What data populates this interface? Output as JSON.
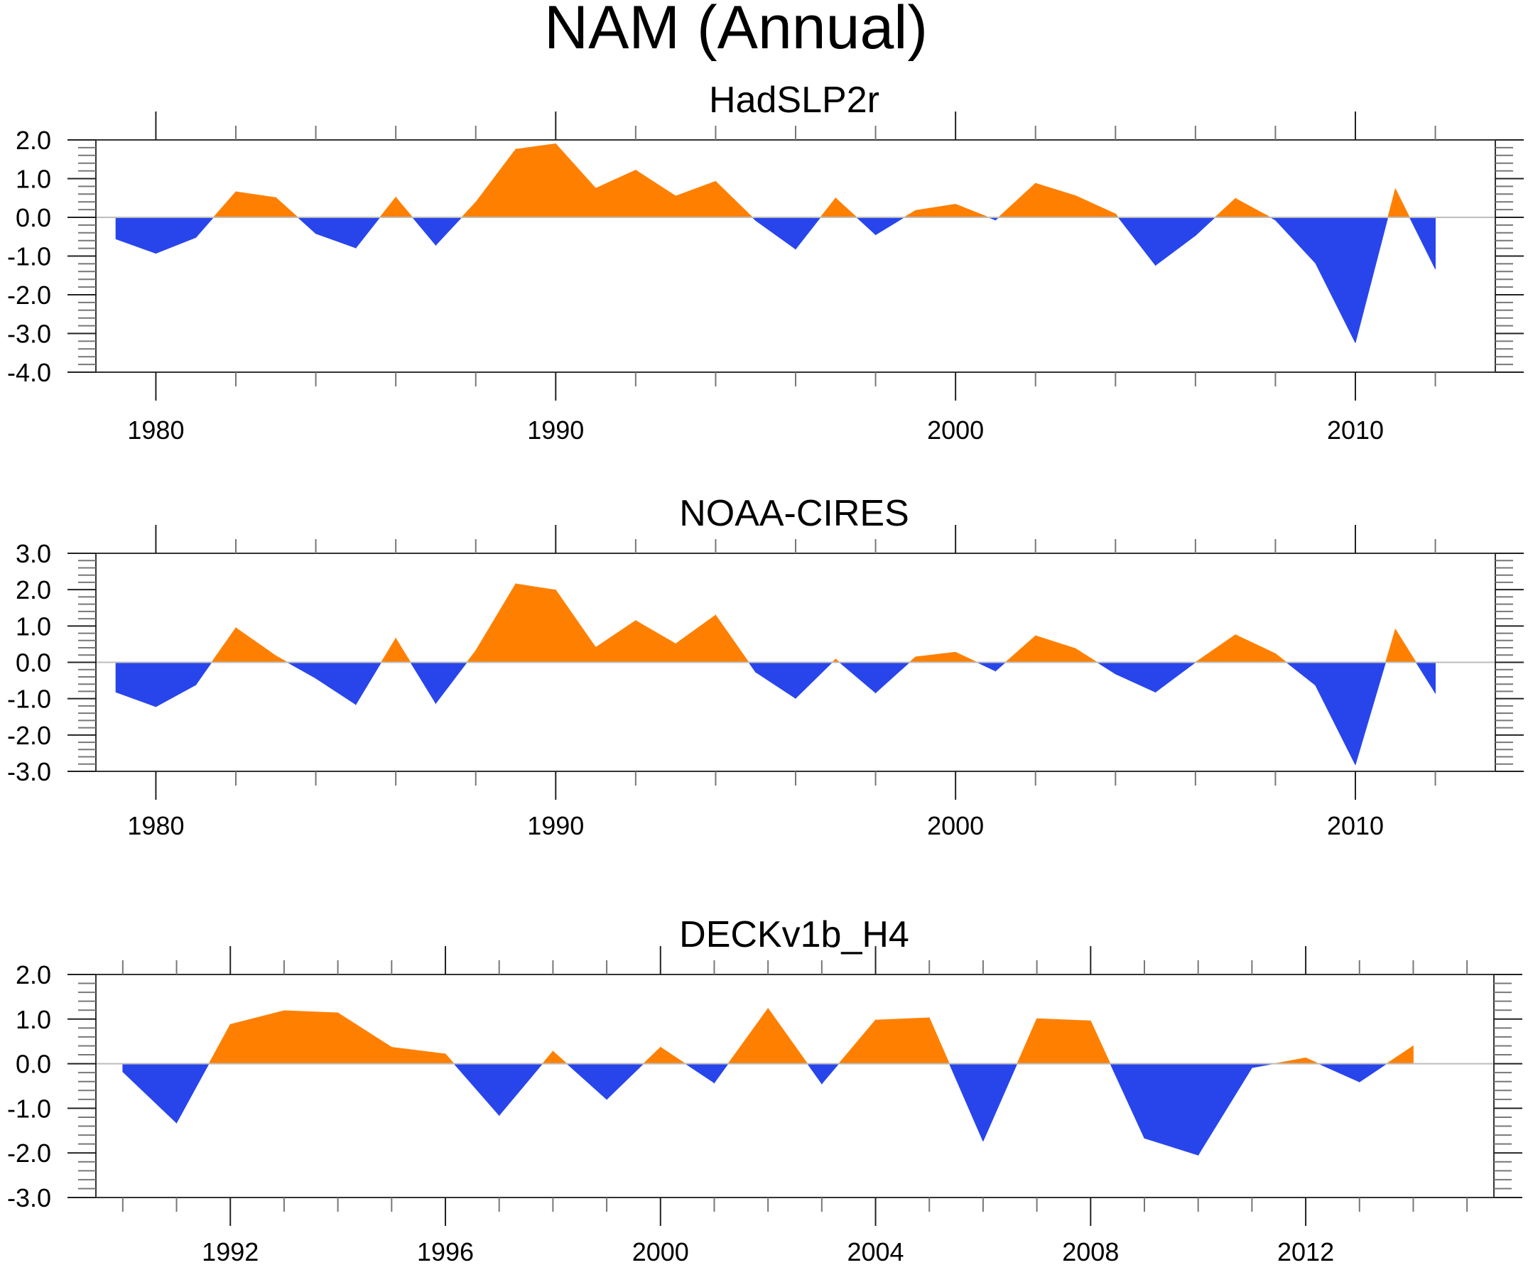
{
  "chart_data": {
    "title": "NAM (Annual)",
    "type": "area",
    "colors": {
      "positive": "#FF8000",
      "negative": "#2845EC",
      "zero_line": "#BDBDBD",
      "axis": "#000000"
    },
    "panels": [
      {
        "subtitle": "HadSLP2r",
        "type": "area",
        "xlim": [
          1978.5,
          2013.5
        ],
        "ylim": [
          -4.0,
          2.0
        ],
        "y_ticks": [
          "2.0",
          "1.0",
          "0.0",
          "-1.0",
          "-2.0",
          "-3.0",
          "-4.0"
        ],
        "y_tick_values": [
          2,
          1,
          0,
          -1,
          -2,
          -3,
          -4
        ],
        "x_tick_labels": [
          "1980",
          "1990",
          "2000",
          "2010"
        ],
        "x_tick_values": [
          1980,
          1990,
          2000,
          2010
        ],
        "x_minor_step": 2,
        "x": [
          1979,
          1980,
          1981,
          1982,
          1983,
          1984,
          1985,
          1986,
          1987,
          1988,
          1989,
          1990,
          1991,
          1992,
          1993,
          1994,
          1995,
          1996,
          1997,
          1998,
          1999,
          2000,
          2001,
          2002,
          2003,
          2004,
          2005,
          2006,
          2007,
          2008,
          2009,
          2010,
          2011,
          2012
        ],
        "values": [
          -0.56,
          -0.93,
          -0.52,
          0.66,
          0.51,
          -0.42,
          -0.79,
          0.52,
          -0.72,
          0.39,
          1.76,
          1.9,
          0.75,
          1.22,
          0.55,
          0.93,
          -0.08,
          -0.82,
          0.5,
          -0.45,
          0.18,
          0.34,
          -0.07,
          0.88,
          0.56,
          0.09,
          -1.24,
          -0.47,
          0.49,
          -0.07,
          -1.18,
          -3.24,
          0.74,
          -1.34
        ]
      },
      {
        "subtitle": "NOAA-CIRES",
        "type": "area",
        "xlim": [
          1978.5,
          2013.5
        ],
        "ylim": [
          -3.0,
          3.0
        ],
        "y_ticks": [
          "3.0",
          "2.0",
          "1.0",
          "0.0",
          "-1.0",
          "-2.0",
          "-3.0"
        ],
        "y_tick_values": [
          3,
          2,
          1,
          0,
          -1,
          -2,
          -3
        ],
        "x_tick_labels": [
          "1980",
          "1990",
          "2000",
          "2010"
        ],
        "x_tick_values": [
          1980,
          1990,
          2000,
          2010
        ],
        "x_minor_step": 2,
        "x": [
          1979,
          1980,
          1981,
          1982,
          1983,
          1984,
          1985,
          1986,
          1987,
          1988,
          1989,
          1990,
          1991,
          1992,
          1993,
          1994,
          1995,
          1996,
          1997,
          1998,
          1999,
          2000,
          2001,
          2002,
          2003,
          2004,
          2005,
          2006,
          2007,
          2008,
          2009,
          2010,
          2011,
          2012
        ],
        "values": [
          -0.82,
          -1.22,
          -0.62,
          0.95,
          0.18,
          -0.44,
          -1.16,
          0.66,
          -1.13,
          0.32,
          2.16,
          1.99,
          0.41,
          1.15,
          0.51,
          1.3,
          -0.27,
          -0.99,
          0.09,
          -0.84,
          0.15,
          0.28,
          -0.24,
          0.73,
          0.38,
          -0.32,
          -0.82,
          0.0,
          0.76,
          0.24,
          -0.63,
          -2.82,
          0.91,
          -0.85
        ]
      },
      {
        "subtitle": "DECKv1b_H4",
        "type": "area",
        "xlim": [
          1989.5,
          2015.5
        ],
        "ylim": [
          -3.0,
          2.0
        ],
        "y_ticks": [
          "2.0",
          "1.0",
          "0.0",
          "-1.0",
          "-2.0",
          "-3.0"
        ],
        "y_tick_values": [
          2,
          1,
          0,
          -1,
          -2,
          -3
        ],
        "x_tick_labels": [
          "1992",
          "1996",
          "2000",
          "2004",
          "2008",
          "2012"
        ],
        "x_tick_values": [
          1992,
          1996,
          2000,
          2004,
          2008,
          2012
        ],
        "x_minor_step": 1,
        "x": [
          1990,
          1991,
          1992,
          1993,
          1994,
          1995,
          1996,
          1997,
          1998,
          1999,
          2000,
          2001,
          2002,
          2003,
          2004,
          2005,
          2006,
          2007,
          2008,
          2009,
          2010,
          2011,
          2012,
          2013,
          2014
        ],
        "values": [
          -0.18,
          -1.33,
          0.88,
          1.19,
          1.14,
          0.37,
          0.22,
          -1.16,
          0.28,
          -0.8,
          0.37,
          -0.43,
          1.24,
          -0.45,
          0.98,
          1.03,
          -1.74,
          1.01,
          0.96,
          -1.67,
          -2.05,
          -0.09,
          0.13,
          -0.41,
          0.4
        ]
      }
    ]
  }
}
